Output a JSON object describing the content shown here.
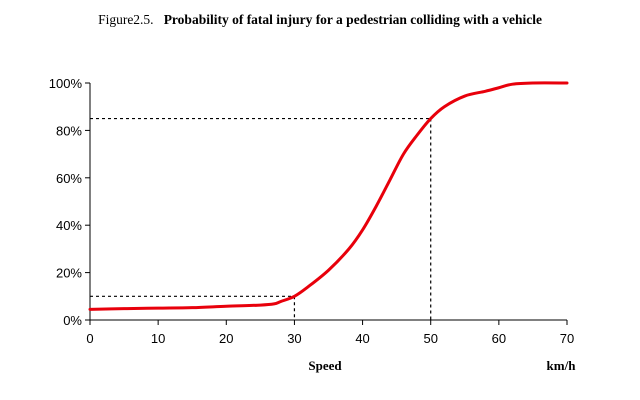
{
  "caption": {
    "number": "Figure2.5.",
    "title": "Probability of fatal injury for a pedestrian colliding with a vehicle"
  },
  "chart_data": {
    "type": "line",
    "title": "Probability of fatal injury for a pedestrian colliding with a vehicle",
    "xlabel": "Speed",
    "xunit": "km/h",
    "ylabel": "",
    "xlim": [
      0,
      70
    ],
    "ylim": [
      0,
      100
    ],
    "x_ticks": [
      0,
      10,
      20,
      30,
      40,
      50,
      60,
      70
    ],
    "y_ticks": [
      0,
      20,
      40,
      60,
      80,
      100
    ],
    "y_tick_labels": [
      "0%",
      "20%",
      "40%",
      "60%",
      "80%",
      "100%"
    ],
    "grid": false,
    "legend": "none",
    "series": [
      {
        "color": "#e8000b",
        "x": [
          0,
          5,
          10,
          15,
          20,
          25,
          27,
          28,
          30,
          32,
          35,
          38,
          40,
          42,
          44,
          46,
          48,
          50,
          52,
          55,
          58,
          60,
          62,
          65,
          70
        ],
        "y": [
          4.5,
          4.8,
          5.0,
          5.2,
          5.8,
          6.3,
          6.8,
          7.8,
          10,
          14,
          21,
          30,
          38,
          48,
          59,
          70,
          78,
          85,
          90,
          94.5,
          96.5,
          98,
          99.5,
          100,
          100
        ]
      }
    ],
    "reference_lines": [
      {
        "x": 30,
        "y": 10,
        "style": "dashed"
      },
      {
        "x": 50,
        "y": 85,
        "style": "dashed"
      }
    ]
  }
}
